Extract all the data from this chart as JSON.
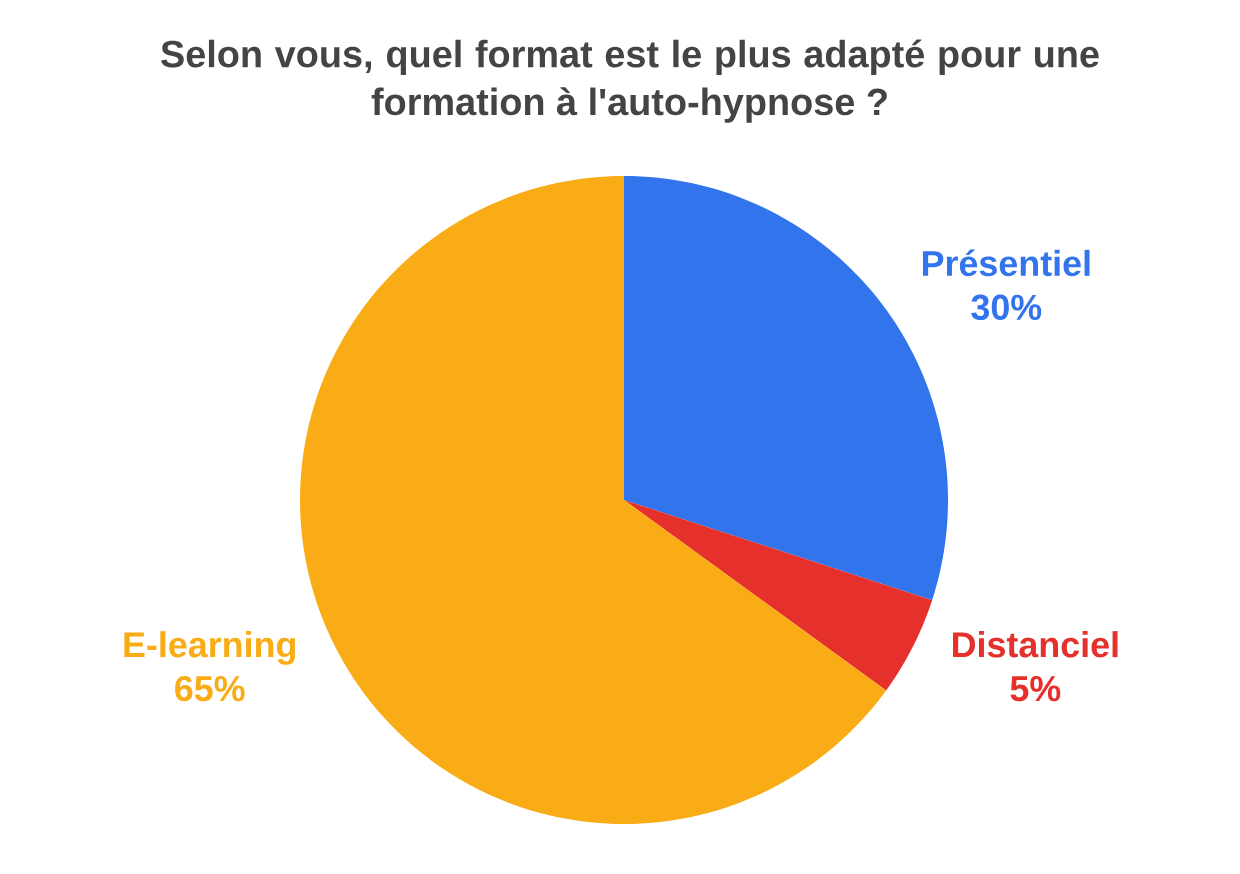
{
  "chart_data": {
    "type": "pie",
    "title": "Selon vous, quel format est le plus adapté pour une formation à l'auto-hypnose ?",
    "categories": [
      "Présentiel",
      "Distanciel",
      "E-learning"
    ],
    "values": [
      30,
      5,
      65
    ],
    "value_labels": [
      "30%",
      "5%",
      "65%"
    ],
    "colors": [
      "#3274eb",
      "#e5302c",
      "#f9ac15"
    ]
  }
}
